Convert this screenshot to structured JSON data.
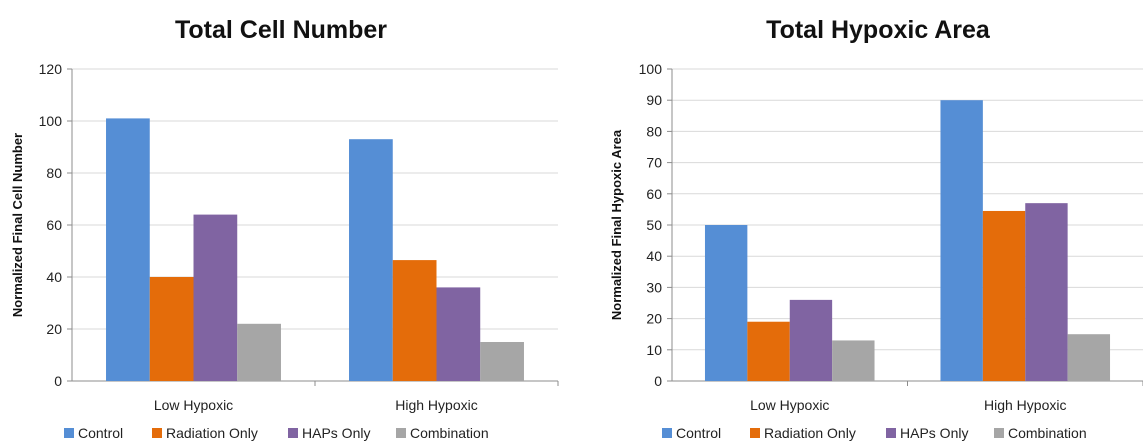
{
  "chart_data": [
    {
      "type": "bar",
      "title": "Total Cell Number",
      "xlabel": "",
      "ylabel": "Normalized Final Cell Number",
      "ylim": [
        0,
        120
      ],
      "yticks": [
        0,
        20,
        40,
        60,
        80,
        100,
        120
      ],
      "categories": [
        "Low Hypoxic",
        "High Hypoxic"
      ],
      "series": [
        {
          "name": "Control",
          "color": "#558ed5",
          "values": [
            101,
            93
          ]
        },
        {
          "name": "Radiation Only",
          "color": "#e46c0a",
          "values": [
            40,
            46.5
          ]
        },
        {
          "name": "HAPs Only",
          "color": "#8064a2",
          "values": [
            64,
            36
          ]
        },
        {
          "name": "Combination",
          "color": "#a6a6a6",
          "values": [
            22,
            15
          ]
        }
      ],
      "grid": true,
      "legend": "bottom"
    },
    {
      "type": "bar",
      "title": "Total Hypoxic Area",
      "xlabel": "",
      "ylabel": "Normalized Final Hypoxic Area",
      "ylim": [
        0,
        100
      ],
      "yticks": [
        0,
        10,
        20,
        30,
        40,
        50,
        60,
        70,
        80,
        90,
        100
      ],
      "categories": [
        "Low Hypoxic",
        "High Hypoxic"
      ],
      "series": [
        {
          "name": "Control",
          "color": "#558ed5",
          "values": [
            50,
            90
          ]
        },
        {
          "name": "Radiation Only",
          "color": "#e46c0a",
          "values": [
            19,
            54.5
          ]
        },
        {
          "name": "HAPs Only",
          "color": "#8064a2",
          "values": [
            26,
            57
          ]
        },
        {
          "name": "Combination",
          "color": "#a6a6a6",
          "values": [
            13,
            15
          ]
        }
      ],
      "grid": true,
      "legend": "bottom"
    }
  ]
}
